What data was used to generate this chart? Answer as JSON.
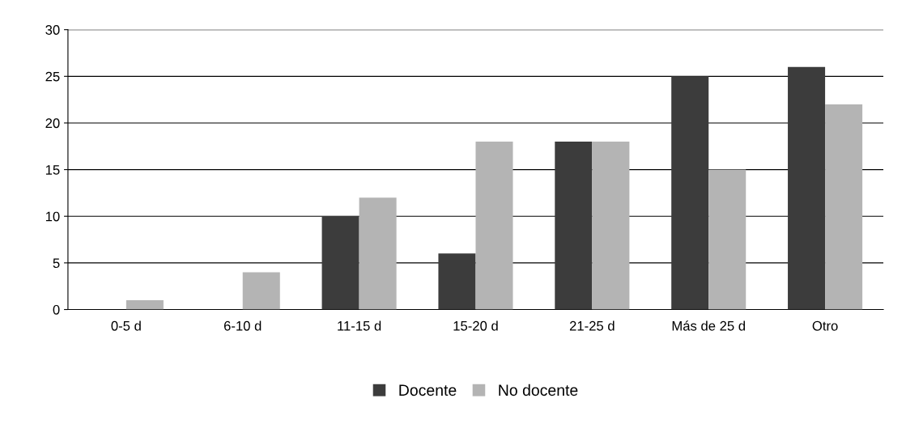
{
  "chart_data": {
    "type": "bar",
    "categories": [
      "0-5 d",
      "6-10 d",
      "11-15 d",
      "15-20 d",
      "21-25 d",
      "Más de 25 d",
      "Otro"
    ],
    "series": [
      {
        "name": "Docente",
        "color": "#3c3c3c",
        "values": [
          0,
          0,
          10,
          6,
          18,
          25,
          26
        ]
      },
      {
        "name": "No docente",
        "color": "#b4b4b4",
        "values": [
          1,
          4,
          12,
          18,
          18,
          15,
          22
        ]
      }
    ],
    "ylim": [
      0,
      30
    ],
    "yticks": [
      0,
      5,
      10,
      15,
      20,
      25,
      30
    ],
    "grid": "y",
    "legend": "bottom"
  }
}
